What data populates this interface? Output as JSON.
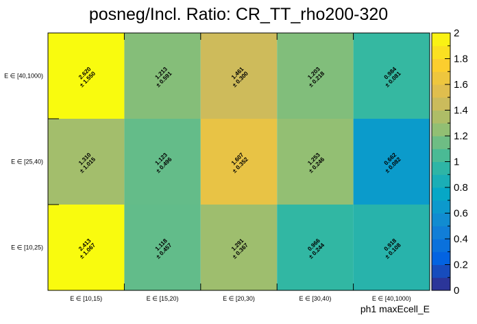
{
  "chart_data": {
    "type": "heatmap",
    "title": "posneg/Incl. Ratio: CR_TT_rho200-320",
    "xlabel": "ph1 maxEcell_E",
    "ylabel": "",
    "x_categories": [
      "E ∈ [10,15)",
      "E ∈ [15,20)",
      "E ∈ [20,30)",
      "E ∈ [30,40)",
      "E ∈ [40,1000)"
    ],
    "y_categories": [
      "E ∈ [10,25)",
      "E ∈ [25,40)",
      "E ∈ [40,1000)"
    ],
    "values": [
      [
        2.413,
        1.118,
        1.291,
        0.966,
        0.918
      ],
      [
        1.31,
        1.123,
        1.607,
        1.253,
        0.662
      ],
      [
        2.62,
        1.213,
        1.461,
        1.203,
        0.984
      ]
    ],
    "errors": [
      [
        1.067,
        0.457,
        0.367,
        0.244,
        0.108
      ],
      [
        1.015,
        0.496,
        0.352,
        0.246,
        0.082
      ],
      [
        1.55,
        0.591,
        0.3,
        0.218,
        0.081
      ]
    ],
    "value_labels": [
      [
        "2.413",
        "1.118",
        "1.291",
        "0.966",
        "0.918"
      ],
      [
        "1.310",
        "1.123",
        "1.607",
        "1.253",
        "0.662"
      ],
      [
        "2.620",
        "1.213",
        "1.461",
        "1.203",
        "0.984"
      ]
    ],
    "error_labels": [
      [
        "± 1.067",
        "± 0.457",
        "± 0.367",
        "± 0.244",
        "± 0.108"
      ],
      [
        "± 1.015",
        "± 0.496",
        "± 0.352",
        "± 0.246",
        "± 0.082"
      ],
      [
        "± 1.550",
        "± 0.591",
        "± 0.300",
        "± 0.218",
        "± 0.081"
      ]
    ],
    "zlim": [
      0,
      2
    ],
    "z_ticks": [
      "0",
      "0.2",
      "0.4",
      "0.6",
      "0.8",
      "1",
      "1.2",
      "1.4",
      "1.6",
      "1.8",
      "2"
    ],
    "palette": [
      "#352a87",
      "#0363e1",
      "#1485d4",
      "#06a7c6",
      "#38b99e",
      "#92bf73",
      "#d9ba56",
      "#fcce2e",
      "#f9fb0e"
    ],
    "grid": false
  }
}
